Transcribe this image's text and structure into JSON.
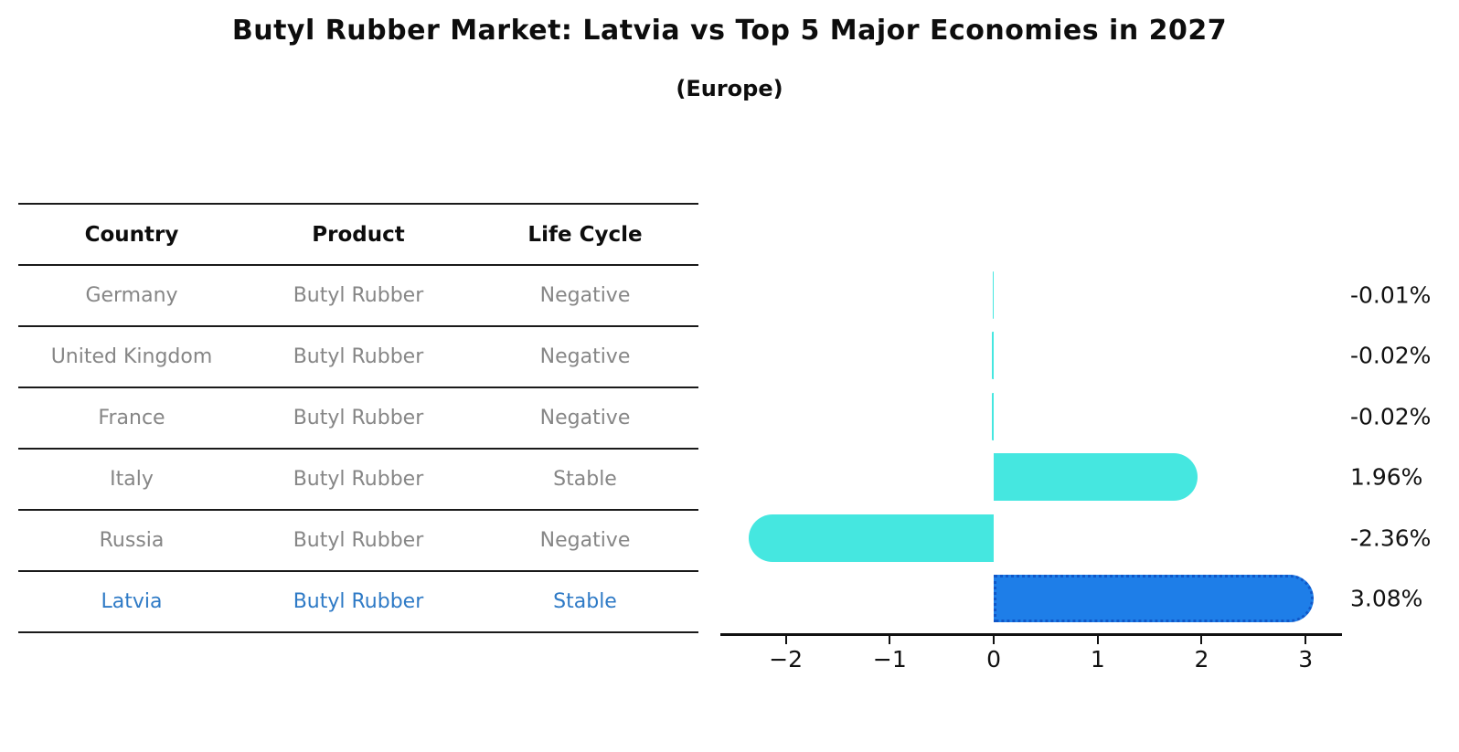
{
  "title": "Butyl Rubber Market: Latvia vs Top 5 Major Economies in 2027",
  "subtitle": "(Europe)",
  "table": {
    "headers": [
      "Country",
      "Product",
      "Life Cycle"
    ],
    "rows": [
      {
        "country": "Germany",
        "product": "Butyl Rubber",
        "life_cycle": "Negative",
        "highlight": false
      },
      {
        "country": "United Kingdom",
        "product": "Butyl Rubber",
        "life_cycle": "Negative",
        "highlight": false
      },
      {
        "country": "France",
        "product": "Butyl Rubber",
        "life_cycle": "Negative",
        "highlight": false
      },
      {
        "country": "Italy",
        "product": "Butyl Rubber",
        "life_cycle": "Stable",
        "highlight": false
      },
      {
        "country": "Russia",
        "product": "Butyl Rubber",
        "life_cycle": "Negative",
        "highlight": false
      },
      {
        "country": "Latvia",
        "product": "Butyl Rubber",
        "life_cycle": "Stable",
        "highlight": true
      }
    ]
  },
  "chart_data": {
    "type": "bar",
    "orientation": "horizontal",
    "title": "Butyl Rubber Market: Latvia vs Top 5 Major Economies in 2027",
    "subtitle": "(Europe)",
    "categories": [
      "Germany",
      "United Kingdom",
      "France",
      "Italy",
      "Russia",
      "Latvia"
    ],
    "values": [
      -0.01,
      -0.02,
      -0.02,
      1.96,
      -2.36,
      3.08
    ],
    "value_labels": [
      "-0.01%",
      "-0.02%",
      "-0.02%",
      "1.96%",
      "-2.36%",
      "3.08%"
    ],
    "highlight_index": 5,
    "xlim": [
      -2.63,
      3.35
    ],
    "x_ticks": [
      -2,
      -1,
      0,
      1,
      2,
      3
    ],
    "x_tick_labels": [
      "−2",
      "−1",
      "0",
      "1",
      "2",
      "3"
    ],
    "grid": false,
    "legend": false,
    "bar_color": "#45e7e0",
    "highlight_bar_color": "#1e7ee8",
    "highlight_border_color": "#1057c8",
    "highlight_text_color": "#2e7ac6"
  }
}
